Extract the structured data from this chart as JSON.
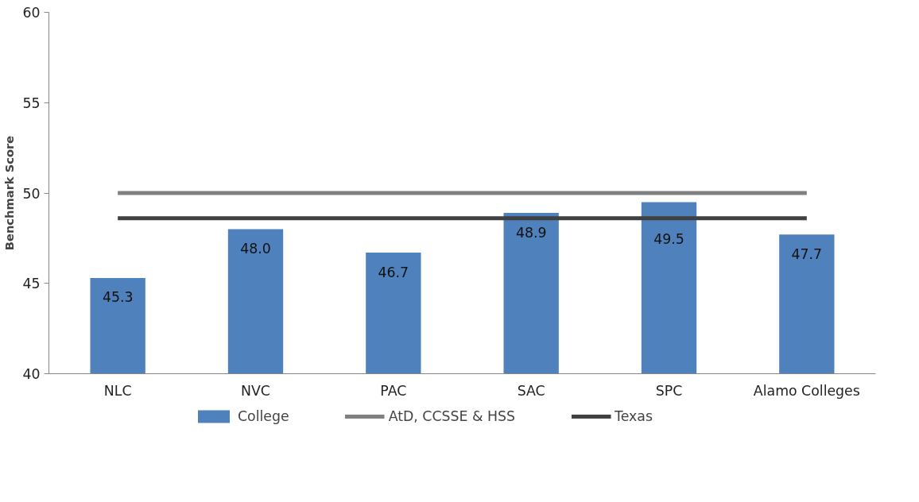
{
  "chart_data": {
    "type": "bar",
    "ylabel": "Benchmark Score",
    "categories": [
      "NLC",
      "NVC",
      "PAC",
      "SAC",
      "SPC",
      "Alamo Colleges"
    ],
    "series": [
      {
        "name": "College",
        "color": "#4f81bd",
        "values": [
          45.3,
          48.0,
          46.7,
          48.9,
          49.5,
          47.7
        ],
        "value_labels": [
          "45.3",
          "48.0",
          "46.7",
          "48.9",
          "49.5",
          "47.7"
        ]
      },
      {
        "name": "AtD, CCSSE & HSS",
        "type": "line",
        "color": "#808080",
        "values": [
          50,
          50,
          50,
          50,
          50,
          50
        ]
      },
      {
        "name": "Texas",
        "type": "line",
        "color": "#404040",
        "values": [
          48.6,
          48.6,
          48.6,
          48.6,
          48.6,
          48.6
        ]
      }
    ],
    "ylim": [
      40,
      60
    ],
    "yticks": [
      40,
      45,
      50,
      55,
      60
    ],
    "grid": false,
    "legend": "bottom"
  }
}
